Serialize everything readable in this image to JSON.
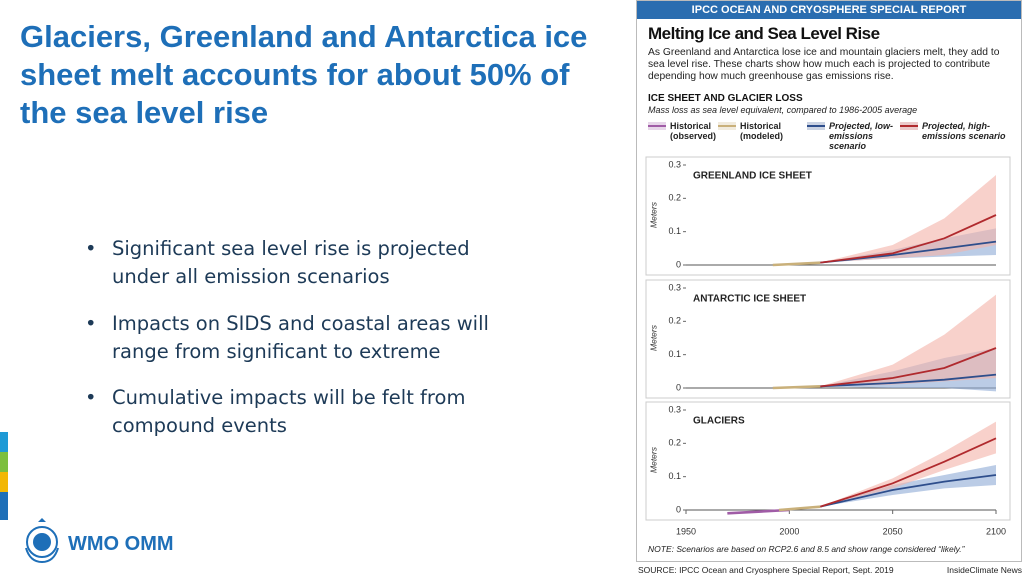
{
  "slide": {
    "title": "Glaciers, Greenland and Antarctica ice sheet melt accounts for about 50% of the sea level rise",
    "bullets": [
      "Significant sea level rise is projected under all emission scenarios",
      "Impacts on SIDS and coastal areas will range from significant to extreme",
      "Cumulative impacts will be felt from compound events"
    ],
    "logo_text": "WMO OMM"
  },
  "infographic": {
    "header": "IPCC OCEAN AND CRYOSPHERE SPECIAL REPORT",
    "title": "Melting Ice and Sea Level Rise",
    "intro": "As Greenland and Antarctica lose ice and mountain glaciers melt, they add to sea level rise. These charts show how much each is projected to contribute depending how much greenhouse gas emissions rise.",
    "section_title": "ICE SHEET AND GLACIER LOSS",
    "section_subtitle": "Mass loss as sea level equivalent, compared to 1986-2005 average",
    "legend": [
      {
        "name": "Historical (observed)",
        "color": "#a05ca6"
      },
      {
        "name": "Historical (modeled)",
        "color": "#c9b07a"
      },
      {
        "name": "Projected, low-emissions scenario",
        "color": "#2e4e8c"
      },
      {
        "name": "Projected, high-emissions scenario",
        "color": "#b02a2e"
      }
    ],
    "note": "NOTE: Scenarios are based on RCP2.6 and 8.5 and show range considered “likely.”",
    "source": "SOURCE: IPCC Ocean and Cryosphere Special Report, Sept. 2019",
    "credit": "InsideClimate News"
  },
  "chart_data": [
    {
      "type": "line",
      "title": "GREENLAND ICE SHEET",
      "ylabel": "Meters",
      "xlim": [
        1950,
        2100
      ],
      "ylim": [
        0,
        0.3
      ],
      "yticks": [
        0,
        0.1,
        0.2,
        0.3
      ],
      "series": [
        {
          "color": "#c9b07a",
          "x": [
            1992,
            2015
          ],
          "values": [
            0,
            0.007
          ]
        },
        {
          "color": "#2e4e8c",
          "band_color": "#8eaad6",
          "x": [
            2015,
            2050,
            2075,
            2100
          ],
          "values": [
            0.007,
            0.03,
            0.05,
            0.07
          ],
          "lower": [
            0.007,
            0.02,
            0.025,
            0.03
          ],
          "upper": [
            0.007,
            0.045,
            0.08,
            0.11
          ]
        },
        {
          "color": "#b02a2e",
          "band_color": "#f4b3a8",
          "x": [
            2015,
            2050,
            2075,
            2100
          ],
          "values": [
            0.007,
            0.035,
            0.08,
            0.15
          ],
          "lower": [
            0.007,
            0.02,
            0.03,
            0.06
          ],
          "upper": [
            0.007,
            0.06,
            0.14,
            0.27
          ]
        }
      ]
    },
    {
      "type": "line",
      "title": "ANTARCTIC ICE SHEET",
      "ylabel": "Meters",
      "xlim": [
        1950,
        2100
      ],
      "ylim": [
        0,
        0.3
      ],
      "yticks": [
        0,
        0.1,
        0.2,
        0.3
      ],
      "series": [
        {
          "color": "#c9b07a",
          "x": [
            1992,
            2015
          ],
          "values": [
            0,
            0.005
          ]
        },
        {
          "color": "#2e4e8c",
          "band_color": "#8eaad6",
          "x": [
            2015,
            2050,
            2075,
            2100
          ],
          "values": [
            0.005,
            0.015,
            0.025,
            0.04
          ],
          "lower": [
            0.005,
            0,
            0,
            -0.01
          ],
          "upper": [
            0.005,
            0.05,
            0.09,
            0.12
          ]
        },
        {
          "color": "#b02a2e",
          "band_color": "#f4b3a8",
          "x": [
            2015,
            2050,
            2075,
            2100
          ],
          "values": [
            0.005,
            0.03,
            0.06,
            0.12
          ],
          "lower": [
            0.005,
            0.01,
            0.02,
            0.03
          ],
          "upper": [
            0.005,
            0.07,
            0.16,
            0.28
          ]
        }
      ]
    },
    {
      "type": "line",
      "title": "GLACIERS",
      "ylabel": "Meters",
      "xlim": [
        1950,
        2100
      ],
      "ylim": [
        0,
        0.3
      ],
      "yticks": [
        0,
        0.1,
        0.2,
        0.3
      ],
      "xticks": [
        1950,
        2000,
        2050,
        2100
      ],
      "series": [
        {
          "color": "#a05ca6",
          "x": [
            1970,
            1985,
            2000
          ],
          "values": [
            -0.01,
            -0.005,
            0
          ]
        },
        {
          "color": "#c9b07a",
          "x": [
            1995,
            2015
          ],
          "values": [
            0,
            0.01
          ]
        },
        {
          "color": "#2e4e8c",
          "band_color": "#8eaad6",
          "x": [
            2015,
            2050,
            2075,
            2100
          ],
          "values": [
            0.01,
            0.06,
            0.085,
            0.105
          ],
          "lower": [
            0.01,
            0.045,
            0.065,
            0.075
          ],
          "upper": [
            0.01,
            0.075,
            0.105,
            0.135
          ]
        },
        {
          "color": "#b02a2e",
          "band_color": "#f4b3a8",
          "x": [
            2015,
            2050,
            2075,
            2100
          ],
          "values": [
            0.01,
            0.08,
            0.145,
            0.215
          ],
          "lower": [
            0.01,
            0.065,
            0.12,
            0.17
          ],
          "upper": [
            0.01,
            0.095,
            0.175,
            0.265
          ]
        }
      ]
    }
  ]
}
